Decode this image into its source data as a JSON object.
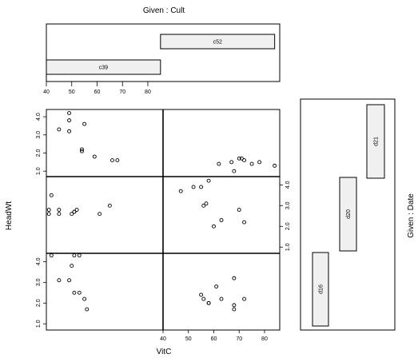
{
  "chart_data": {
    "type": "scatter",
    "title": "Given : Cult",
    "xlabel": "VitC",
    "ylabel": "HeadWt",
    "right_label": "Given : Date",
    "x_ticks_top": [
      "40",
      "50",
      "60",
      "70",
      "80"
    ],
    "x_ticks_bottom": [
      "40",
      "50",
      "60",
      "70",
      "80"
    ],
    "y_ticks_left": [
      "1.0",
      "2.0",
      "3.0",
      "4.0"
    ],
    "y_ticks_right": [
      "1.0",
      "2.0",
      "3.0",
      "4.0"
    ],
    "xlim": [
      40,
      86
    ],
    "ylim": [
      0.7,
      4.4
    ],
    "cult_given": [
      {
        "label": "c39",
        "from": 40,
        "to": 85
      },
      {
        "label": "c52",
        "from": 85,
        "to": 130
      }
    ],
    "date_given": [
      {
        "label": "d16",
        "level": 1
      },
      {
        "label": "d20",
        "level": 2
      },
      {
        "label": "d21",
        "level": 3
      }
    ],
    "panels": [
      {
        "cult": "c39",
        "date": "d21",
        "points": [
          [
            49,
            4.2
          ],
          [
            49,
            3.8
          ],
          [
            45,
            3.3
          ],
          [
            49,
            3.2
          ],
          [
            55,
            3.6
          ],
          [
            54,
            2.2
          ],
          [
            54,
            2.1
          ],
          [
            59,
            1.8
          ],
          [
            66,
            1.6
          ],
          [
            68,
            1.6
          ]
        ]
      },
      {
        "cult": "c52",
        "date": "d21",
        "points": [
          [
            62,
            1.4
          ],
          [
            67,
            1.5
          ],
          [
            68,
            1.0
          ],
          [
            70,
            1.7
          ],
          [
            71,
            1.7
          ],
          [
            72,
            1.6
          ],
          [
            75,
            1.4
          ],
          [
            78,
            1.5
          ],
          [
            84,
            1.3
          ]
        ]
      },
      {
        "cult": "c39",
        "date": "d20",
        "points": [
          [
            42,
            3.5
          ],
          [
            41,
            2.8
          ],
          [
            41,
            2.6
          ],
          [
            45,
            2.8
          ],
          [
            45,
            2.6
          ],
          [
            50,
            2.6
          ],
          [
            51,
            2.7
          ],
          [
            52,
            2.8
          ],
          [
            61,
            2.6
          ],
          [
            65,
            3.0
          ],
          [
            51,
            2.7
          ]
        ]
      },
      {
        "cult": "c52",
        "date": "d20",
        "points": [
          [
            47,
            3.7
          ],
          [
            52,
            3.9
          ],
          [
            55,
            3.9
          ],
          [
            58,
            4.2
          ],
          [
            57,
            3.1
          ],
          [
            56,
            3.0
          ],
          [
            63,
            2.3
          ],
          [
            60,
            2.0
          ],
          [
            70,
            2.8
          ],
          [
            72,
            2.2
          ]
        ]
      },
      {
        "cult": "c39",
        "date": "d16",
        "points": [
          [
            42,
            4.3
          ],
          [
            51,
            4.3
          ],
          [
            53,
            4.3
          ],
          [
            50,
            3.8
          ],
          [
            45,
            3.1
          ],
          [
            49,
            3.1
          ],
          [
            51,
            2.5
          ],
          [
            53,
            2.5
          ],
          [
            55,
            2.2
          ],
          [
            56,
            1.7
          ]
        ]
      },
      {
        "cult": "c52",
        "date": "d16",
        "points": [
          [
            55,
            2.4
          ],
          [
            56,
            2.2
          ],
          [
            58,
            2.0
          ],
          [
            58,
            2.0
          ],
          [
            61,
            2.8
          ],
          [
            63,
            2.2
          ],
          [
            68,
            3.2
          ],
          [
            68,
            1.9
          ],
          [
            68,
            1.7
          ],
          [
            72,
            2.2
          ]
        ]
      }
    ]
  }
}
